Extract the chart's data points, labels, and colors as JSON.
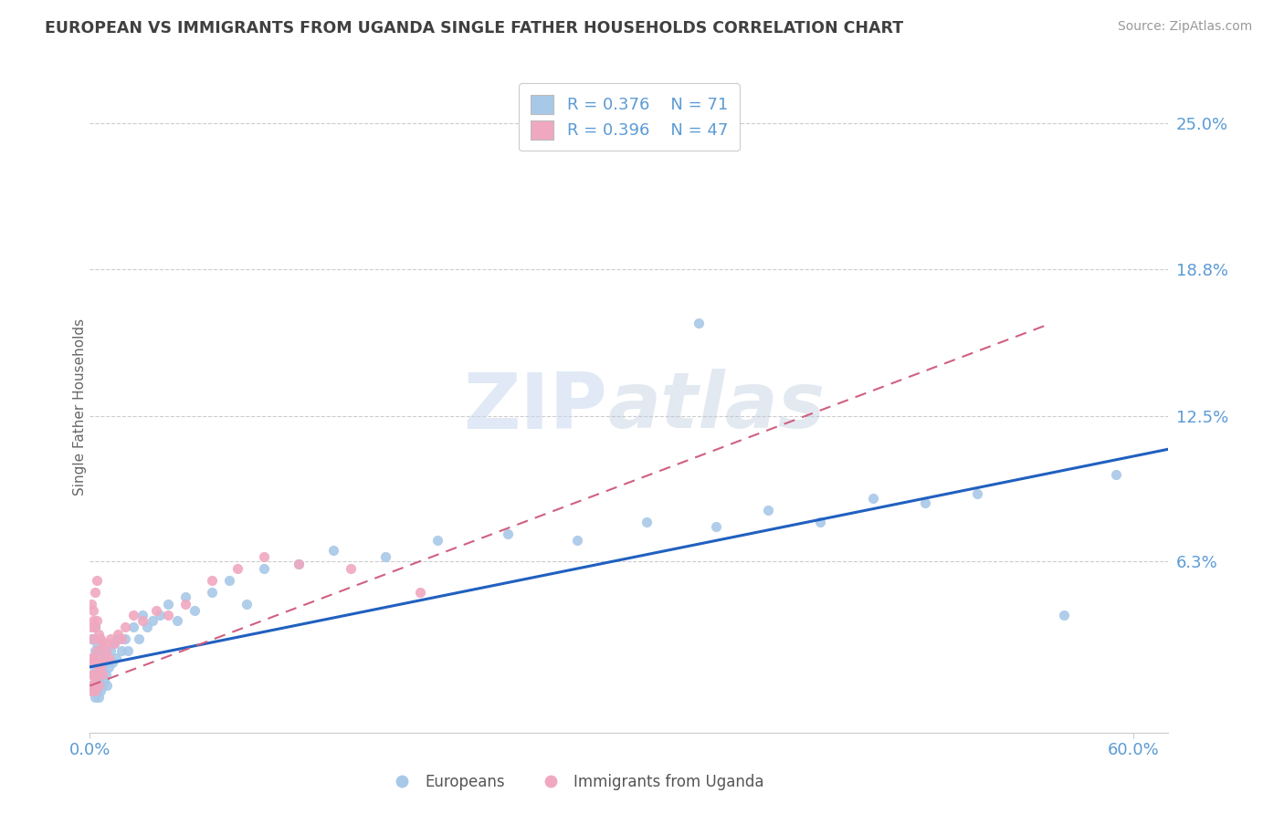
{
  "title": "EUROPEAN VS IMMIGRANTS FROM UGANDA SINGLE FATHER HOUSEHOLDS CORRELATION CHART",
  "source": "Source: ZipAtlas.com",
  "ylabel": "Single Father Households",
  "xlim": [
    0.0,
    0.62
  ],
  "ylim": [
    -0.01,
    0.268
  ],
  "ytick_vals": [
    0.0,
    0.063,
    0.125,
    0.188,
    0.25
  ],
  "ytick_labels": [
    "",
    "6.3%",
    "12.5%",
    "18.8%",
    "25.0%"
  ],
  "xtick_vals": [
    0.0,
    0.6
  ],
  "xtick_labels": [
    "0.0%",
    "60.0%"
  ],
  "legend_r1": "R = 0.376",
  "legend_n1": "N = 71",
  "legend_r2": "R = 0.396",
  "legend_n2": "N = 47",
  "legend_label1": "Europeans",
  "legend_label2": "Immigrants from Uganda",
  "color_blue": "#A8C8E8",
  "color_pink": "#F0A8C0",
  "color_blue_line": "#2060C0",
  "color_pink_line": "#D06080",
  "color_axis_text": "#5B9BD5",
  "color_grid": "#CCCCCC",
  "color_title": "#404040",
  "color_source": "#999999",
  "color_ylabel": "#666666",
  "watermark_color": "#D8E8F5",
  "eu_x": [
    0.001,
    0.001,
    0.001,
    0.002,
    0.002,
    0.002,
    0.002,
    0.003,
    0.003,
    0.003,
    0.003,
    0.003,
    0.004,
    0.004,
    0.004,
    0.004,
    0.005,
    0.005,
    0.005,
    0.005,
    0.006,
    0.006,
    0.006,
    0.007,
    0.007,
    0.007,
    0.008,
    0.008,
    0.009,
    0.009,
    0.01,
    0.01,
    0.011,
    0.012,
    0.013,
    0.014,
    0.015,
    0.016,
    0.018,
    0.02,
    0.022,
    0.025,
    0.028,
    0.03,
    0.033,
    0.036,
    0.04,
    0.045,
    0.05,
    0.055,
    0.06,
    0.07,
    0.08,
    0.09,
    0.1,
    0.12,
    0.14,
    0.17,
    0.2,
    0.24,
    0.28,
    0.32,
    0.36,
    0.39,
    0.42,
    0.45,
    0.48,
    0.51,
    0.56,
    0.59,
    0.35
  ],
  "eu_y": [
    0.01,
    0.02,
    0.03,
    0.008,
    0.015,
    0.022,
    0.03,
    0.005,
    0.012,
    0.018,
    0.025,
    0.035,
    0.008,
    0.015,
    0.02,
    0.028,
    0.005,
    0.012,
    0.02,
    0.03,
    0.008,
    0.015,
    0.025,
    0.01,
    0.018,
    0.028,
    0.012,
    0.022,
    0.015,
    0.025,
    0.01,
    0.02,
    0.018,
    0.025,
    0.02,
    0.028,
    0.022,
    0.03,
    0.025,
    0.03,
    0.025,
    0.035,
    0.03,
    0.04,
    0.035,
    0.038,
    0.04,
    0.045,
    0.038,
    0.048,
    0.042,
    0.05,
    0.055,
    0.045,
    0.06,
    0.062,
    0.068,
    0.065,
    0.072,
    0.075,
    0.072,
    0.08,
    0.078,
    0.085,
    0.08,
    0.09,
    0.088,
    0.092,
    0.04,
    0.1,
    0.165
  ],
  "ug_x": [
    0.001,
    0.001,
    0.001,
    0.001,
    0.001,
    0.002,
    0.002,
    0.002,
    0.002,
    0.003,
    0.003,
    0.003,
    0.003,
    0.004,
    0.004,
    0.004,
    0.005,
    0.005,
    0.005,
    0.006,
    0.006,
    0.007,
    0.007,
    0.008,
    0.009,
    0.01,
    0.011,
    0.012,
    0.014,
    0.016,
    0.018,
    0.02,
    0.025,
    0.03,
    0.038,
    0.045,
    0.055,
    0.07,
    0.085,
    0.1,
    0.12,
    0.15,
    0.19,
    0.005,
    0.003,
    0.002,
    0.004
  ],
  "ug_y": [
    0.008,
    0.015,
    0.022,
    0.035,
    0.045,
    0.01,
    0.02,
    0.03,
    0.042,
    0.012,
    0.022,
    0.035,
    0.05,
    0.015,
    0.025,
    0.038,
    0.01,
    0.02,
    0.032,
    0.018,
    0.03,
    0.015,
    0.028,
    0.022,
    0.025,
    0.028,
    0.022,
    0.03,
    0.028,
    0.032,
    0.03,
    0.035,
    0.04,
    0.038,
    0.042,
    0.04,
    0.045,
    0.055,
    0.06,
    0.065,
    0.062,
    0.06,
    0.05,
    0.018,
    0.008,
    0.038,
    0.055
  ]
}
